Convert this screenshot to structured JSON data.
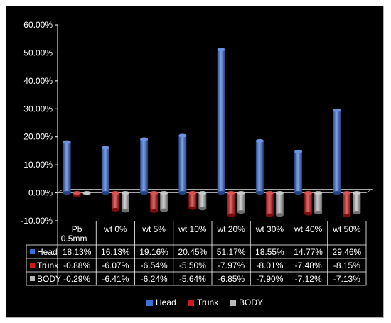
{
  "chart_data": {
    "type": "bar",
    "categories": [
      "Pb 0.5mm",
      "wt 0%",
      "wt 5%",
      "wt 10%",
      "wt 20%",
      "wt 30%",
      "wt 40%",
      "wt 50%"
    ],
    "series": [
      {
        "name": "Head",
        "color": "#3a6fd8",
        "values": [
          18.13,
          16.13,
          19.16,
          20.45,
          51.17,
          18.55,
          14.77,
          29.46
        ],
        "labels": [
          "18.13%",
          "16.13%",
          "19.16%",
          "20.45%",
          "51.17%",
          "18.55%",
          "14.77%",
          "29.46%"
        ]
      },
      {
        "name": "Trunk",
        "color": "#d01818",
        "values": [
          -0.88,
          -6.07,
          -6.54,
          -5.5,
          -7.97,
          -8.01,
          -7.48,
          -8.15
        ],
        "labels": [
          "-0.88%",
          "-6.07%",
          "-6.54%",
          "-5.50%",
          "-7.97%",
          "-8.01%",
          "-7.48%",
          "-8.15%"
        ]
      },
      {
        "name": "BODY",
        "color": "#b8b8b8",
        "values": [
          -0.29,
          -6.41,
          -6.24,
          -5.64,
          -6.85,
          -7.9,
          -7.12,
          -7.13
        ],
        "labels": [
          "-0.29%",
          "-6.41%",
          "-6.24%",
          "-5.64%",
          "-6.85%",
          "-7.90%",
          "-7.12%",
          "-7.13%"
        ]
      }
    ],
    "ylim": [
      -10,
      60
    ],
    "yticks": [
      -10,
      0,
      10,
      20,
      30,
      40,
      50,
      60
    ],
    "ytick_labels": [
      "-10.00%",
      "0.00%",
      "10.00%",
      "20.00%",
      "30.00%",
      "40.00%",
      "50.00%",
      "60.00%"
    ],
    "grid": false,
    "legend_position": "bottom-center",
    "data_table": true
  }
}
